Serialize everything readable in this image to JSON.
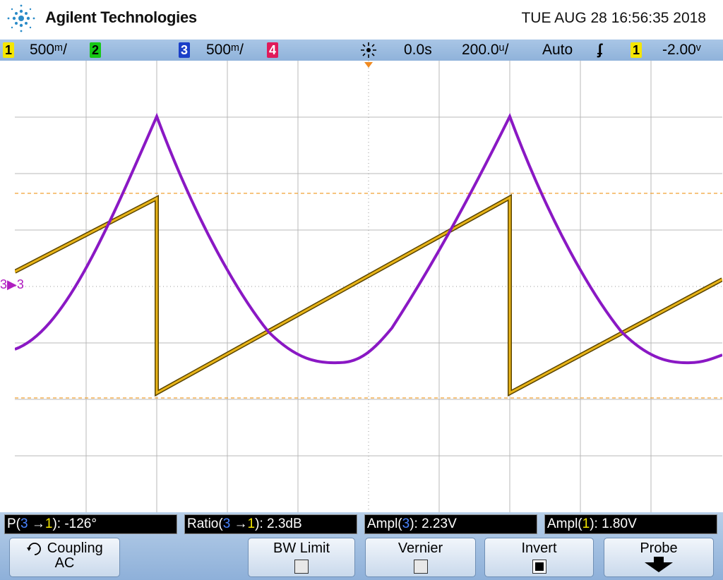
{
  "header": {
    "brand": "Agilent Technologies",
    "datetime": "TUE AUG 28 16:56:35 2018"
  },
  "status": {
    "ch1": {
      "label": "1",
      "scale": "500ᵐ/"
    },
    "ch2": {
      "label": "2"
    },
    "ch3": {
      "label": "3",
      "scale": "500ᵐ/"
    },
    "ch4": {
      "label": "4"
    },
    "delay": "0.0s",
    "timebase": "200.0ᵘ/",
    "trigger_mode": "Auto",
    "trigger_slope": "ʄ",
    "trigger_source": "1",
    "trigger_level": "-2.00ᵛ"
  },
  "marker": "3",
  "measurements": [
    {
      "prefix": "P(",
      "src": "3",
      "arrow": " →",
      "src2": "1",
      "suffix": "): -126°"
    },
    {
      "prefix": "Ratio(",
      "src": "3",
      "arrow": " →",
      "src2": "1",
      "suffix": "): 2.3dB"
    },
    {
      "prefix": "Ampl(",
      "src": "3",
      "suffix": "): 2.23V"
    },
    {
      "prefix": "Ampl(",
      "src": "1",
      "suffix": "): 1.80V"
    }
  ],
  "softkeys": {
    "coupling": {
      "line1": "Coupling",
      "line2": "AC"
    },
    "bw_limit": {
      "label": "BW Limit"
    },
    "vernier": {
      "label": "Vernier"
    },
    "invert": {
      "label": "Invert"
    },
    "probe": {
      "label": "Probe"
    }
  },
  "colors": {
    "ch1": "#e8b418",
    "ch3": "#8a18c4",
    "grid": "#b8b8b8",
    "ref": "#f0a030"
  }
}
